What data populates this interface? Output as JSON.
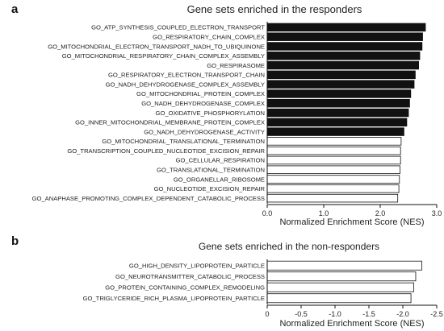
{
  "chart_data": [
    {
      "panel_label": "a",
      "type": "bar",
      "orientation": "horizontal",
      "title": "Gene sets enriched in the responders",
      "xlabel": "Normalized Enrichment Score (NES)",
      "xlim": [
        0,
        3.0
      ],
      "xticks": [
        "0.0",
        "1.0",
        "2.0",
        "3.0"
      ],
      "categories": [
        "GO_ATP_SYNTHESIS_COUPLED_ELECTRON_TRANSPORT",
        "GO_RESPIRATORY_CHAIN_COMPLEX",
        "GO_MITOCHONDRIAL_ELECTRON_TRANSPORT_NADH_TO_UBIQUINONE",
        "GO_MITOCHONDRIAL_RESPIRATORY_CHAIN_COMPLEX_ASSEMBLY",
        "GO_RESPIRASOME",
        "GO_RESPIRATORY_ELECTRON_TRANSPORT_CHAIN",
        "GO_NADH_DEHYDROGENASE_COMPLEX_ASSEMBLY",
        "GO_MITOCHONDRIAL_PROTEIN_COMPLEX",
        "GO_NADH_DEHYDROGENASE_COMPLEX",
        "GO_OXIDATIVE_PHOSPHORYLATION",
        "GO_INNER_MITOCHONDRIAL_MEMBRANE_PROTEIN_COMPLEX",
        "GO_NADH_DEHYDROGENASE_ACTIVITY",
        "GO_MITOCHONDRIAL_TRANSLATIONAL_TERMINATION",
        "GO_TRANSCRIPTION_COUPLED_NUCLEOTIDE_EXCISION_REPAIR",
        "GO_CELLULAR_RESPIRATION",
        "GO_TRANSLATIONAL_TERMINATION",
        "GO_ORGANELLAR_RIBOSOME",
        "GO_NUCLEOTIDE_EXCISION_REPAIR",
        "GO_ANAPHASE_PROMOTING_COMPLEX_DEPENDENT_CATABOLIC_PROCESS"
      ],
      "values": [
        2.8,
        2.75,
        2.74,
        2.7,
        2.68,
        2.62,
        2.6,
        2.54,
        2.52,
        2.5,
        2.47,
        2.42,
        2.37,
        2.36,
        2.36,
        2.35,
        2.34,
        2.33,
        2.31
      ],
      "fill": [
        "black",
        "black",
        "black",
        "black",
        "black",
        "black",
        "black",
        "black",
        "black",
        "black",
        "black",
        "black",
        "white",
        "white",
        "white",
        "white",
        "white",
        "white",
        "white"
      ]
    },
    {
      "panel_label": "b",
      "type": "bar",
      "orientation": "horizontal",
      "title": "Gene sets enriched in the non-responders",
      "xlabel": "Normalized Enrichment Score (NES)",
      "xlim": [
        0,
        -2.5
      ],
      "xticks": [
        "0",
        "-0.5",
        "-1.0",
        "-1.5",
        "-2.0",
        "-2.5"
      ],
      "categories": [
        "GO_HIGH_DENSITY_LIPOPROTEIN_PARTICLE",
        "GO_NEUROTRANSMITTER_CATABOLIC_PROCESS",
        "GO_PROTEIN_CONTAINING_COMPLEX_REMODELING",
        "GO_TRIGLYCERIDE_RICH_PLASMA_LIPOPROTEIN_PARTICLE"
      ],
      "values": [
        -2.28,
        -2.19,
        -2.16,
        -2.12
      ],
      "fill": [
        "white",
        "white",
        "white",
        "white"
      ]
    }
  ]
}
